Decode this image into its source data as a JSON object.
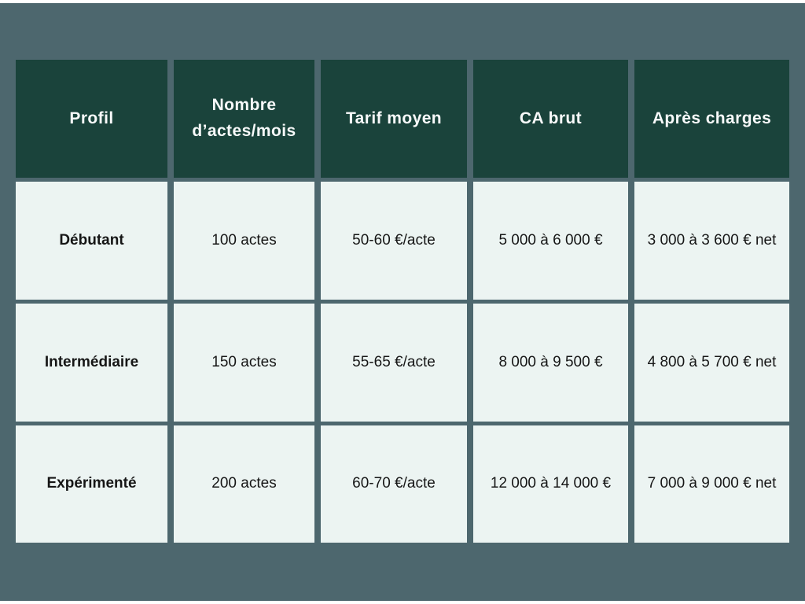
{
  "colors": {
    "bg": "#4d676e",
    "strip": "#ffffff",
    "header-bg": "#1a433b",
    "header-text": "#f8fafa",
    "cell-bg": "#ecf4f2",
    "body-text": "#161616"
  },
  "table": {
    "headers": [
      "Profil",
      "Nombre d’actes/mois",
      "Tarif moyen",
      "CA brut",
      "Après charges"
    ],
    "rows": [
      {
        "cells": [
          "Débutant",
          "100 actes",
          "50-60 €/acte",
          "5 000 à 6 000 €",
          "3 000 à 3 600 € net"
        ]
      },
      {
        "cells": [
          "Intermédiaire",
          "150 actes",
          "55-65 €/acte",
          "8 000 à 9 500 €",
          "4 800 à 5 700 € net"
        ]
      },
      {
        "cells": [
          "Expérimenté",
          "200 actes",
          "60-70 €/acte",
          "12 000 à 14 000 €",
          "7 000 à 9 000 € net"
        ]
      }
    ]
  },
  "chart_data": {
    "type": "table",
    "title": "",
    "columns": [
      "Profil",
      "Nombre d’actes/mois",
      "Tarif moyen",
      "CA brut",
      "Après charges"
    ],
    "rows": [
      [
        "Débutant",
        "100 actes",
        "50-60 €/acte",
        "5 000 à 6 000 €",
        "3 000 à 3 600 € net"
      ],
      [
        "Intermédiaire",
        "150 actes",
        "55-65 €/acte",
        "8 000 à 9 500 €",
        "4 800 à 5 700 € net"
      ],
      [
        "Expérimenté",
        "200 actes",
        "60-70 €/acte",
        "12 000 à 14 000 €",
        "7 000 à 9 000 € net"
      ]
    ],
    "layout_hints": {
      "header_style": "dark-green background, white bold text",
      "body_style": "light mint cells on slate background with gutters",
      "grid": "cell gaps reveal slate background"
    }
  }
}
